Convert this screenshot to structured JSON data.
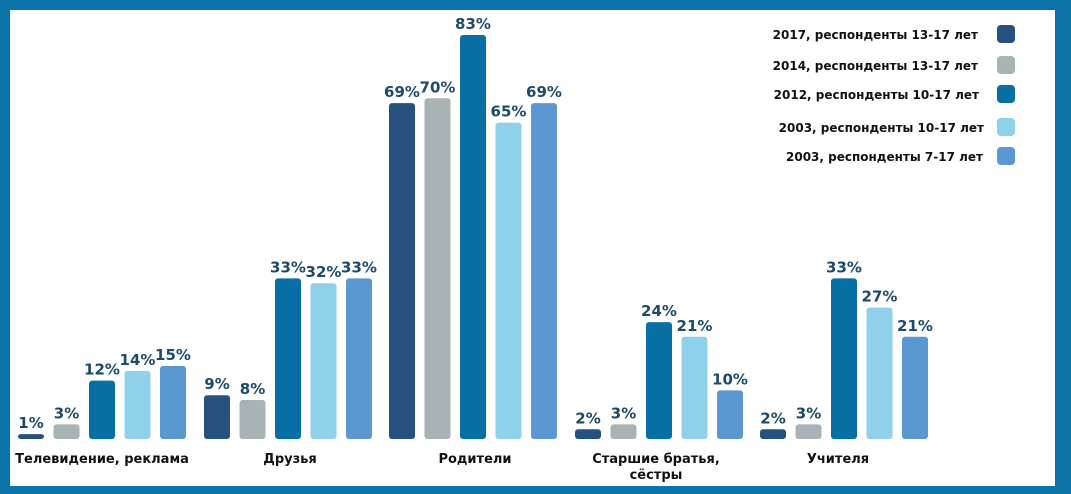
{
  "chart_data": {
    "type": "bar",
    "title": "",
    "xlabel": "",
    "ylabel": "",
    "ylim": [
      0,
      83
    ],
    "grid": false,
    "legend_position": "top-right",
    "categories": [
      "Телевидение, реклама",
      "Друзья",
      "Родители",
      "Старшие братья,\nсёстры",
      "Учителя"
    ],
    "series": [
      {
        "name": "2017, респонденты 13-17 лет",
        "color": "#26507d",
        "values": [
          1,
          9,
          69,
          2,
          2
        ]
      },
      {
        "name": "2014, респонденты 13-17 лет",
        "color": "#a9b2b5",
        "values": [
          3,
          8,
          70,
          3,
          3
        ]
      },
      {
        "name": "2012, респонденты 10-17 лет",
        "color": "#086fa4",
        "values": [
          12,
          33,
          83,
          24,
          33
        ]
      },
      {
        "name": "2003, респонденты 10-17 лет",
        "color": "#8fd0ea",
        "values": [
          14,
          32,
          65,
          21,
          27
        ]
      },
      {
        "name": "2003, респонденты 7-17 лет",
        "color": "#5b98d2",
        "values": [
          15,
          33,
          69,
          10,
          21
        ]
      }
    ],
    "value_suffix": "%"
  }
}
